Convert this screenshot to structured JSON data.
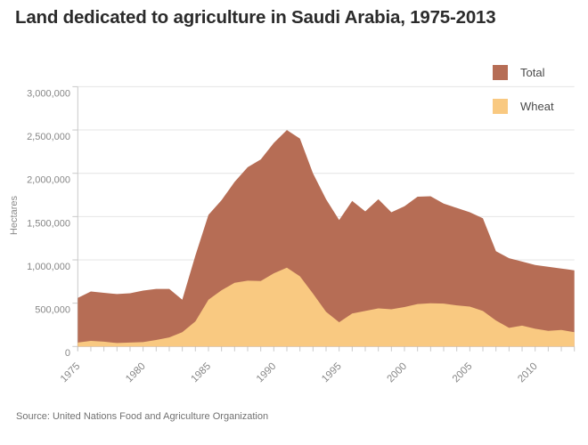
{
  "header": {
    "title": "Land dedicated to agriculture in Saudi Arabia, 1975-2013"
  },
  "footer": {
    "source": "Source: United Nations Food and Agriculture Organization"
  },
  "colors": {
    "grid": "#e4e4e4",
    "axis": "#c9c9c9",
    "tick_text": "#878787",
    "total": "#b66d55",
    "wheat": "#f9c981"
  },
  "chart_data": {
    "type": "area",
    "title": "Land dedicated to agriculture in Saudi Arabia, 1975-2013",
    "xlabel": "",
    "ylabel": "Hectares",
    "ylim": [
      0,
      3000000
    ],
    "grid": "horizontal",
    "legend_position": "top-right",
    "x": [
      1975,
      1976,
      1977,
      1978,
      1979,
      1980,
      1981,
      1982,
      1983,
      1984,
      1985,
      1986,
      1987,
      1988,
      1989,
      1990,
      1991,
      1992,
      1993,
      1994,
      1995,
      1996,
      1997,
      1998,
      1999,
      2000,
      2001,
      2002,
      2003,
      2004,
      2005,
      2006,
      2007,
      2008,
      2009,
      2010,
      2011,
      2012,
      2013
    ],
    "series": [
      {
        "name": "Total",
        "color": "#b66d55",
        "values": [
          560000,
          635000,
          620000,
          605000,
          615000,
          645000,
          665000,
          665000,
          540000,
          1050000,
          1520000,
          1690000,
          1900000,
          2070000,
          2160000,
          2350000,
          2500000,
          2400000,
          2000000,
          1700000,
          1460000,
          1680000,
          1560000,
          1700000,
          1550000,
          1620000,
          1730000,
          1735000,
          1650000,
          1600000,
          1550000,
          1480000,
          1100000,
          1020000,
          980000,
          940000,
          920000,
          900000,
          880000
        ]
      },
      {
        "name": "Wheat",
        "color": "#f9c981",
        "values": [
          45000,
          65000,
          55000,
          40000,
          45000,
          50000,
          75000,
          105000,
          165000,
          290000,
          540000,
          650000,
          735000,
          760000,
          755000,
          845000,
          910000,
          810000,
          610000,
          400000,
          280000,
          380000,
          410000,
          440000,
          430000,
          455000,
          490000,
          500000,
          495000,
          475000,
          460000,
          410000,
          300000,
          215000,
          240000,
          205000,
          180000,
          190000,
          165000
        ]
      }
    ],
    "yticks": [
      {
        "value": 0,
        "label": "0"
      },
      {
        "value": 500000,
        "label": "500,000"
      },
      {
        "value": 1000000,
        "label": "1,000,000"
      },
      {
        "value": 1500000,
        "label": "1,500,000"
      },
      {
        "value": 2000000,
        "label": "2,000,000"
      },
      {
        "value": 2500000,
        "label": "2,500,000"
      },
      {
        "value": 3000000,
        "label": "3,000,000"
      }
    ],
    "xtick_labels": [
      "1975",
      "1980",
      "1985",
      "1990",
      "1995",
      "2000",
      "2005",
      "2010"
    ]
  }
}
